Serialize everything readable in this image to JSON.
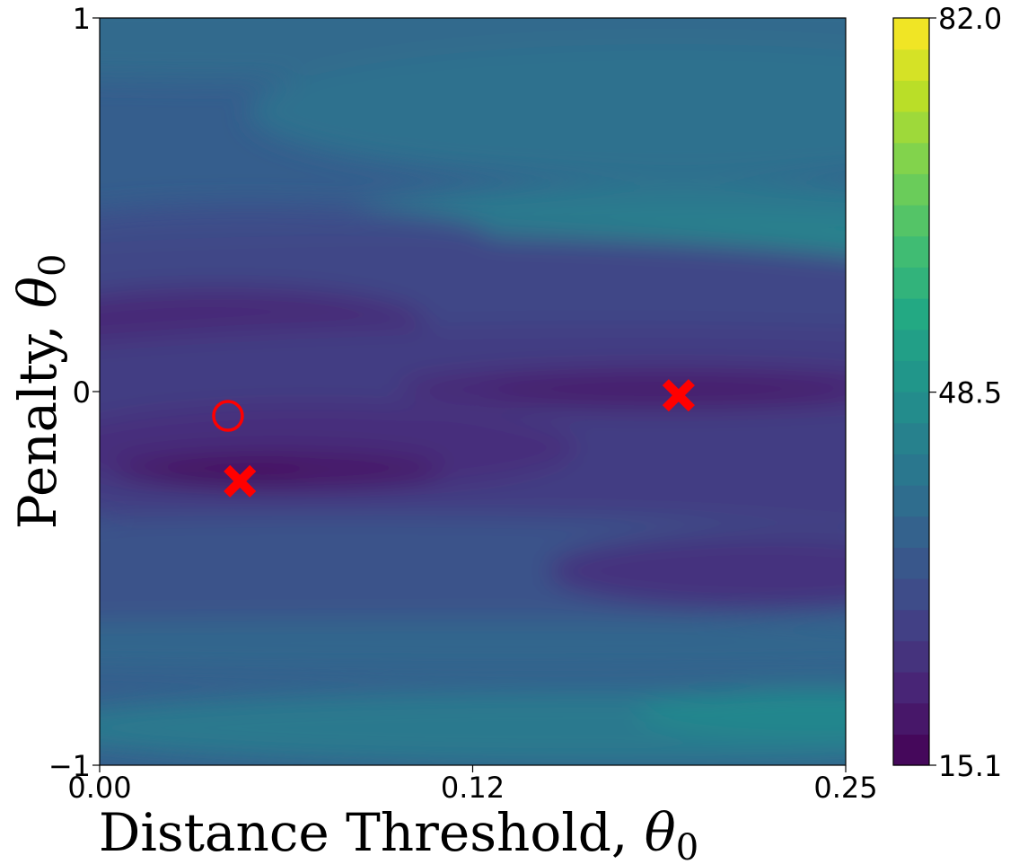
{
  "chart_data": {
    "type": "heatmap",
    "title": "",
    "xlabel": "Distance Threshold, ",
    "xlabel_symbol": "θ",
    "xlabel_subscript": "0",
    "ylabel": "Penalty, ",
    "ylabel_symbol": "θ",
    "ylabel_subscript": "0",
    "xlim": [
      0.0,
      0.25
    ],
    "ylim": [
      -1,
      1
    ],
    "x_ticks": [
      {
        "value": 0.0,
        "label": "0.00"
      },
      {
        "value": 0.125,
        "label": "0.12"
      },
      {
        "value": 0.25,
        "label": "0.25"
      }
    ],
    "y_ticks": [
      {
        "value": 1,
        "label": "1"
      },
      {
        "value": 0,
        "label": "0"
      },
      {
        "value": -1,
        "label": "−1"
      }
    ],
    "colormap": "viridis",
    "colorbar": {
      "min": 15.1,
      "max": 82.0,
      "levels": 24,
      "ticks": [
        {
          "value": 82.0,
          "label": "82.0"
        },
        {
          "value": 48.5,
          "label": "48.5"
        },
        {
          "value": 15.1,
          "label": "15.1"
        }
      ]
    },
    "background_value": 35,
    "regions": [
      {
        "cx": 0.13,
        "cy": 0.95,
        "rx": 0.4,
        "ry": 0.12,
        "value": 38
      },
      {
        "cx": 0.19,
        "cy": 0.75,
        "rx": 0.14,
        "ry": 0.18,
        "value": 40
      },
      {
        "cx": 0.2,
        "cy": 0.44,
        "rx": 0.13,
        "ry": 0.12,
        "value": 42
      },
      {
        "cx": 0.205,
        "cy": 0.39,
        "rx": 0.085,
        "ry": 0.065,
        "value": 45
      },
      {
        "cx": 0.05,
        "cy": 0.42,
        "rx": 0.08,
        "ry": 0.08,
        "value": 31
      },
      {
        "cx": 0.1,
        "cy": 0.22,
        "rx": 0.22,
        "ry": 0.2,
        "value": 29
      },
      {
        "cx": 0.04,
        "cy": 0.18,
        "rx": 0.07,
        "ry": 0.1,
        "value": 23
      },
      {
        "cx": 0.08,
        "cy": 0.04,
        "rx": 0.08,
        "ry": 0.05,
        "value": 30
      },
      {
        "cx": 0.17,
        "cy": -0.1,
        "rx": 0.3,
        "ry": 0.28,
        "value": 27
      },
      {
        "cx": 0.19,
        "cy": 0.01,
        "rx": 0.09,
        "ry": 0.06,
        "value": 22
      },
      {
        "cx": 0.19,
        "cy": 0.0,
        "rx": 0.06,
        "ry": 0.035,
        "value": 20
      },
      {
        "cx": 0.07,
        "cy": -0.15,
        "rx": 0.09,
        "ry": 0.12,
        "value": 24
      },
      {
        "cx": 0.06,
        "cy": -0.21,
        "rx": 0.055,
        "ry": 0.05,
        "value": 19
      },
      {
        "cx": 0.045,
        "cy": -0.22,
        "rx": 0.025,
        "ry": 0.015,
        "value": 16
      },
      {
        "cx": 0.08,
        "cy": -0.48,
        "rx": 0.25,
        "ry": 0.15,
        "value": 32
      },
      {
        "cx": 0.22,
        "cy": -0.48,
        "rx": 0.07,
        "ry": 0.1,
        "value": 25
      },
      {
        "cx": 0.13,
        "cy": -0.68,
        "rx": 0.3,
        "ry": 0.07,
        "value": 37
      },
      {
        "cx": 0.17,
        "cy": -0.9,
        "rx": 0.2,
        "ry": 0.1,
        "value": 42
      },
      {
        "cx": 0.24,
        "cy": -0.86,
        "rx": 0.06,
        "ry": 0.07,
        "value": 46
      }
    ],
    "markers": [
      {
        "type": "cross",
        "x": 0.047,
        "y": -0.24,
        "color": "#ff0000"
      },
      {
        "type": "cross",
        "x": 0.194,
        "y": -0.01,
        "color": "#ff0000"
      },
      {
        "type": "circle",
        "x": 0.043,
        "y": -0.065,
        "color": "#ff0000"
      }
    ]
  }
}
